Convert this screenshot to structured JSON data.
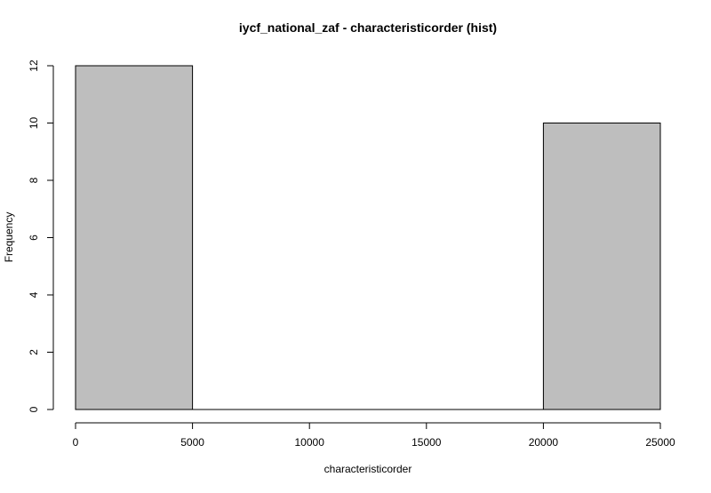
{
  "chart_data": {
    "type": "bar",
    "title": "iycf_national_zaf - characteristicorder (hist)",
    "xlabel": "characteristicorder",
    "ylabel": "Frequency",
    "bins": [
      {
        "start": 0,
        "end": 5000,
        "count": 12
      },
      {
        "start": 5000,
        "end": 10000,
        "count": 0
      },
      {
        "start": 10000,
        "end": 15000,
        "count": 0
      },
      {
        "start": 15000,
        "end": 20000,
        "count": 0
      },
      {
        "start": 20000,
        "end": 25000,
        "count": 10
      }
    ],
    "xlim": [
      0,
      25000
    ],
    "ylim": [
      0,
      12
    ],
    "xticks": [
      0,
      5000,
      10000,
      15000,
      20000,
      25000
    ],
    "yticks": [
      0,
      2,
      4,
      6,
      8,
      10,
      12
    ],
    "grid": false,
    "legend": "none",
    "bar_fill": "#bebebe",
    "bar_stroke": "#000000"
  }
}
